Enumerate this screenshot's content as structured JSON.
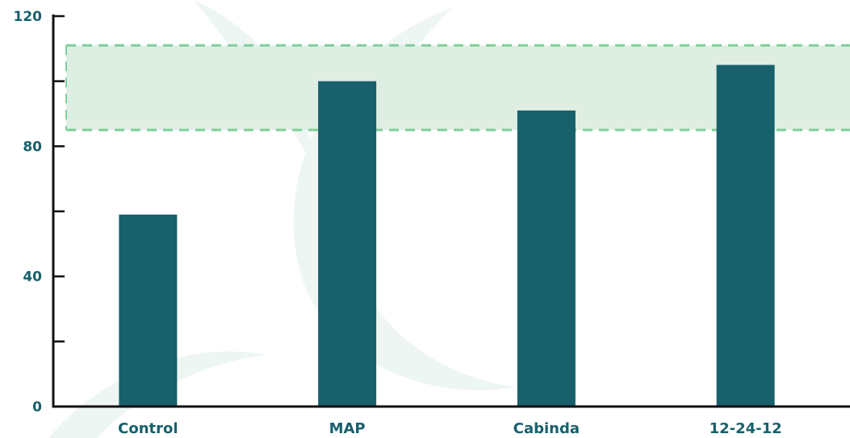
{
  "chart_data": {
    "type": "bar",
    "categories": [
      "Control",
      "MAP",
      "Cabinda",
      "12-24-12"
    ],
    "values": [
      59,
      100,
      91,
      105
    ],
    "ylim": [
      0,
      120
    ],
    "y_major_ticks": [
      0,
      40,
      80,
      120
    ],
    "y_minor_ticks": [
      20,
      60,
      100
    ],
    "reference_band": {
      "low": 85,
      "high": 111
    },
    "grid": false,
    "legend": "none",
    "colors": {
      "bar": "#17606c",
      "axis": "#111111",
      "tick_label": "#17606c",
      "band_fill": "#dfeee3",
      "band_line": "#7fcf9a",
      "watermark": "#eef6f3"
    }
  }
}
